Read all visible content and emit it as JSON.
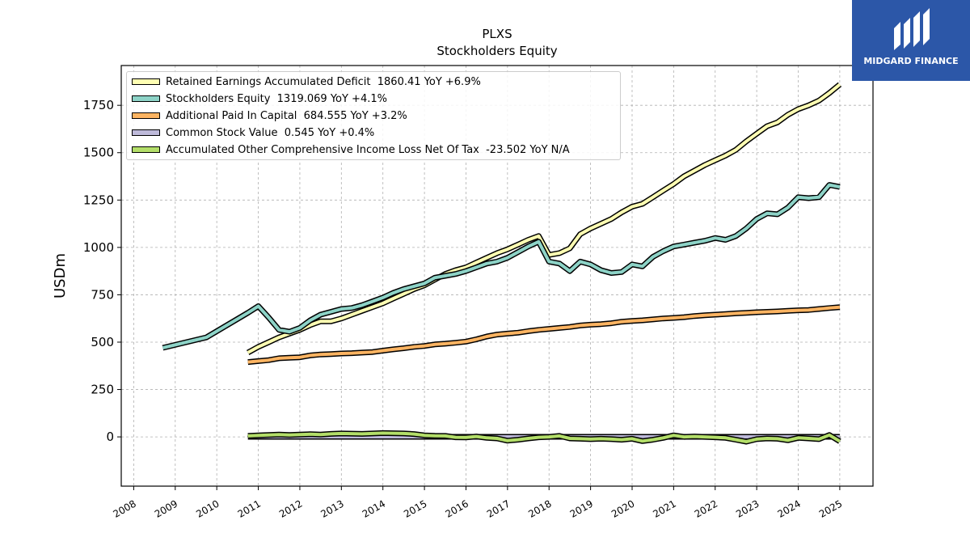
{
  "title": "PLXS",
  "subtitle": "Stockholders  Equity",
  "logo": {
    "text": "MIDGARD FINANCE",
    "bg_color": "#2c57a8"
  },
  "chart_data": {
    "type": "line",
    "ylabel": "USDm",
    "xlim": [
      2007.7,
      2025.8
    ],
    "ylim": [
      -260,
      1960
    ],
    "yticks": [
      0,
      250,
      500,
      750,
      1000,
      1250,
      1500,
      1750
    ],
    "xticks": [
      "2008",
      "2009",
      "2010",
      "2011",
      "2012",
      "2013",
      "2014",
      "2015",
      "2016",
      "2017",
      "2018",
      "2019",
      "2020",
      "2021",
      "2022",
      "2023",
      "2024",
      "2025"
    ],
    "grid": true,
    "legend_position": "upper-left",
    "series": [
      {
        "name": "Retained Earnings Accumulated Deficit",
        "legend_label": "Retained Earnings Accumulated Deficit  1860.41 YoY +6.9%",
        "color": "#ffffb3",
        "points": [
          [
            2010.75,
            445
          ],
          [
            2011.0,
            475
          ],
          [
            2011.25,
            500
          ],
          [
            2011.5,
            525
          ],
          [
            2011.75,
            545
          ],
          [
            2012.0,
            565
          ],
          [
            2012.25,
            590
          ],
          [
            2012.5,
            610
          ],
          [
            2012.75,
            610
          ],
          [
            2013.0,
            625
          ],
          [
            2013.25,
            645
          ],
          [
            2013.5,
            665
          ],
          [
            2013.75,
            685
          ],
          [
            2014.0,
            705
          ],
          [
            2014.25,
            730
          ],
          [
            2014.5,
            755
          ],
          [
            2014.75,
            780
          ],
          [
            2015.0,
            800
          ],
          [
            2015.25,
            830
          ],
          [
            2015.5,
            860
          ],
          [
            2015.75,
            880
          ],
          [
            2016.0,
            895
          ],
          [
            2016.25,
            920
          ],
          [
            2016.5,
            945
          ],
          [
            2016.75,
            970
          ],
          [
            2017.0,
            990
          ],
          [
            2017.25,
            1015
          ],
          [
            2017.5,
            1040
          ],
          [
            2017.75,
            1060
          ],
          [
            2018.0,
            960
          ],
          [
            2018.25,
            970
          ],
          [
            2018.5,
            995
          ],
          [
            2018.75,
            1070
          ],
          [
            2019.0,
            1100
          ],
          [
            2019.25,
            1125
          ],
          [
            2019.5,
            1150
          ],
          [
            2019.75,
            1185
          ],
          [
            2020.0,
            1215
          ],
          [
            2020.25,
            1230
          ],
          [
            2020.5,
            1265
          ],
          [
            2020.75,
            1300
          ],
          [
            2021.0,
            1335
          ],
          [
            2021.25,
            1375
          ],
          [
            2021.5,
            1405
          ],
          [
            2021.75,
            1435
          ],
          [
            2022.0,
            1460
          ],
          [
            2022.25,
            1485
          ],
          [
            2022.5,
            1515
          ],
          [
            2022.75,
            1560
          ],
          [
            2023.0,
            1600
          ],
          [
            2023.25,
            1640
          ],
          [
            2023.5,
            1660
          ],
          [
            2023.75,
            1700
          ],
          [
            2024.0,
            1730
          ],
          [
            2024.25,
            1750
          ],
          [
            2024.5,
            1775
          ],
          [
            2024.75,
            1815
          ],
          [
            2025.0,
            1860
          ]
        ]
      },
      {
        "name": "Stockholders Equity",
        "legend_label": "Stockholders Equity  1319.069 YoY +4.1%",
        "color": "#8dd3c7",
        "points": [
          [
            2008.7,
            470
          ],
          [
            2009.75,
            525
          ],
          [
            2010.75,
            655
          ],
          [
            2011.0,
            690
          ],
          [
            2011.25,
            630
          ],
          [
            2011.5,
            565
          ],
          [
            2011.75,
            555
          ],
          [
            2012.0,
            575
          ],
          [
            2012.25,
            615
          ],
          [
            2012.5,
            645
          ],
          [
            2012.75,
            660
          ],
          [
            2013.0,
            675
          ],
          [
            2013.25,
            680
          ],
          [
            2013.5,
            695
          ],
          [
            2013.75,
            715
          ],
          [
            2014.0,
            735
          ],
          [
            2014.25,
            760
          ],
          [
            2014.5,
            780
          ],
          [
            2014.75,
            795
          ],
          [
            2015.0,
            810
          ],
          [
            2015.25,
            840
          ],
          [
            2015.5,
            850
          ],
          [
            2015.75,
            860
          ],
          [
            2016.0,
            875
          ],
          [
            2016.25,
            895
          ],
          [
            2016.5,
            915
          ],
          [
            2016.75,
            925
          ],
          [
            2017.0,
            945
          ],
          [
            2017.25,
            975
          ],
          [
            2017.5,
            1005
          ],
          [
            2017.75,
            1030
          ],
          [
            2018.0,
            925
          ],
          [
            2018.25,
            915
          ],
          [
            2018.5,
            875
          ],
          [
            2018.75,
            925
          ],
          [
            2019.0,
            910
          ],
          [
            2019.25,
            880
          ],
          [
            2019.5,
            865
          ],
          [
            2019.75,
            870
          ],
          [
            2020.0,
            910
          ],
          [
            2020.25,
            900
          ],
          [
            2020.5,
            950
          ],
          [
            2020.75,
            980
          ],
          [
            2021.0,
            1005
          ],
          [
            2021.25,
            1015
          ],
          [
            2021.5,
            1025
          ],
          [
            2021.75,
            1035
          ],
          [
            2022.0,
            1050
          ],
          [
            2022.25,
            1040
          ],
          [
            2022.5,
            1060
          ],
          [
            2022.75,
            1100
          ],
          [
            2023.0,
            1150
          ],
          [
            2023.25,
            1180
          ],
          [
            2023.5,
            1175
          ],
          [
            2023.75,
            1210
          ],
          [
            2024.0,
            1265
          ],
          [
            2024.25,
            1260
          ],
          [
            2024.5,
            1265
          ],
          [
            2024.75,
            1330
          ],
          [
            2025.0,
            1319
          ]
        ]
      },
      {
        "name": "Additional Paid In Capital",
        "legend_label": "Additional Paid In Capital  684.555 YoY +3.2%",
        "color": "#fdb462",
        "points": [
          [
            2010.75,
            395
          ],
          [
            2011.0,
            400
          ],
          [
            2011.25,
            405
          ],
          [
            2011.5,
            415
          ],
          [
            2011.75,
            418
          ],
          [
            2012.0,
            420
          ],
          [
            2012.25,
            430
          ],
          [
            2012.5,
            435
          ],
          [
            2012.75,
            437
          ],
          [
            2013.0,
            440
          ],
          [
            2013.25,
            442
          ],
          [
            2013.5,
            445
          ],
          [
            2013.75,
            448
          ],
          [
            2014.0,
            455
          ],
          [
            2014.25,
            462
          ],
          [
            2014.5,
            468
          ],
          [
            2014.75,
            475
          ],
          [
            2015.0,
            480
          ],
          [
            2015.25,
            488
          ],
          [
            2015.5,
            492
          ],
          [
            2015.75,
            497
          ],
          [
            2016.0,
            503
          ],
          [
            2016.25,
            515
          ],
          [
            2016.5,
            530
          ],
          [
            2016.75,
            540
          ],
          [
            2017.0,
            545
          ],
          [
            2017.25,
            550
          ],
          [
            2017.5,
            558
          ],
          [
            2017.75,
            565
          ],
          [
            2018.0,
            570
          ],
          [
            2018.25,
            575
          ],
          [
            2018.5,
            580
          ],
          [
            2018.75,
            588
          ],
          [
            2019.0,
            592
          ],
          [
            2019.25,
            595
          ],
          [
            2019.5,
            600
          ],
          [
            2019.75,
            608
          ],
          [
            2020.0,
            612
          ],
          [
            2020.25,
            615
          ],
          [
            2020.5,
            620
          ],
          [
            2020.75,
            625
          ],
          [
            2021.0,
            628
          ],
          [
            2021.25,
            632
          ],
          [
            2021.5,
            638
          ],
          [
            2021.75,
            642
          ],
          [
            2022.0,
            645
          ],
          [
            2022.25,
            648
          ],
          [
            2022.5,
            652
          ],
          [
            2022.75,
            655
          ],
          [
            2023.0,
            658
          ],
          [
            2023.25,
            660
          ],
          [
            2023.5,
            662
          ],
          [
            2023.75,
            665
          ],
          [
            2024.0,
            668
          ],
          [
            2024.25,
            670
          ],
          [
            2024.5,
            675
          ],
          [
            2024.75,
            680
          ],
          [
            2025.0,
            684.5
          ]
        ]
      },
      {
        "name": "Common Stock Value",
        "legend_label": "Common Stock Value  0.545 YoY +0.4%",
        "color": "#bebada",
        "points": [
          [
            2010.75,
            0.5
          ],
          [
            2025.0,
            0.545
          ]
        ]
      },
      {
        "name": "Accumulated Other Comprehensive Income Loss Net Of Tax",
        "legend_label": "Accumulated Other Comprehensive Income Loss Net Of Tax  -23.502 YoY N/A",
        "color": "#b3de69",
        "points": [
          [
            2010.75,
            5
          ],
          [
            2011.0,
            8
          ],
          [
            2011.25,
            10
          ],
          [
            2011.5,
            12
          ],
          [
            2011.75,
            10
          ],
          [
            2012.0,
            12
          ],
          [
            2012.25,
            14
          ],
          [
            2012.5,
            12
          ],
          [
            2012.75,
            16
          ],
          [
            2013.0,
            18
          ],
          [
            2013.25,
            17
          ],
          [
            2013.5,
            16
          ],
          [
            2013.75,
            18
          ],
          [
            2014.0,
            20
          ],
          [
            2014.25,
            19
          ],
          [
            2014.5,
            18
          ],
          [
            2014.75,
            15
          ],
          [
            2015.0,
            8
          ],
          [
            2015.25,
            6
          ],
          [
            2015.5,
            5
          ],
          [
            2015.75,
            -2
          ],
          [
            2016.0,
            -3
          ],
          [
            2016.25,
            2
          ],
          [
            2016.5,
            -5
          ],
          [
            2016.75,
            -8
          ],
          [
            2017.0,
            -20
          ],
          [
            2017.25,
            -15
          ],
          [
            2017.5,
            -8
          ],
          [
            2017.75,
            -2
          ],
          [
            2018.0,
            0
          ],
          [
            2018.25,
            5
          ],
          [
            2018.5,
            -8
          ],
          [
            2018.75,
            -10
          ],
          [
            2019.0,
            -12
          ],
          [
            2019.25,
            -10
          ],
          [
            2019.5,
            -12
          ],
          [
            2019.75,
            -15
          ],
          [
            2020.0,
            -10
          ],
          [
            2020.25,
            -22
          ],
          [
            2020.5,
            -15
          ],
          [
            2020.75,
            -5
          ],
          [
            2021.0,
            8
          ],
          [
            2021.25,
            0
          ],
          [
            2021.5,
            2
          ],
          [
            2021.75,
            0
          ],
          [
            2022.0,
            -2
          ],
          [
            2022.25,
            -5
          ],
          [
            2022.5,
            -15
          ],
          [
            2022.75,
            -25
          ],
          [
            2023.0,
            -12
          ],
          [
            2023.25,
            -8
          ],
          [
            2023.5,
            -10
          ],
          [
            2023.75,
            -18
          ],
          [
            2024.0,
            -5
          ],
          [
            2024.25,
            -8
          ],
          [
            2024.5,
            -12
          ],
          [
            2024.75,
            10
          ],
          [
            2025.0,
            -23.5
          ]
        ]
      }
    ]
  }
}
